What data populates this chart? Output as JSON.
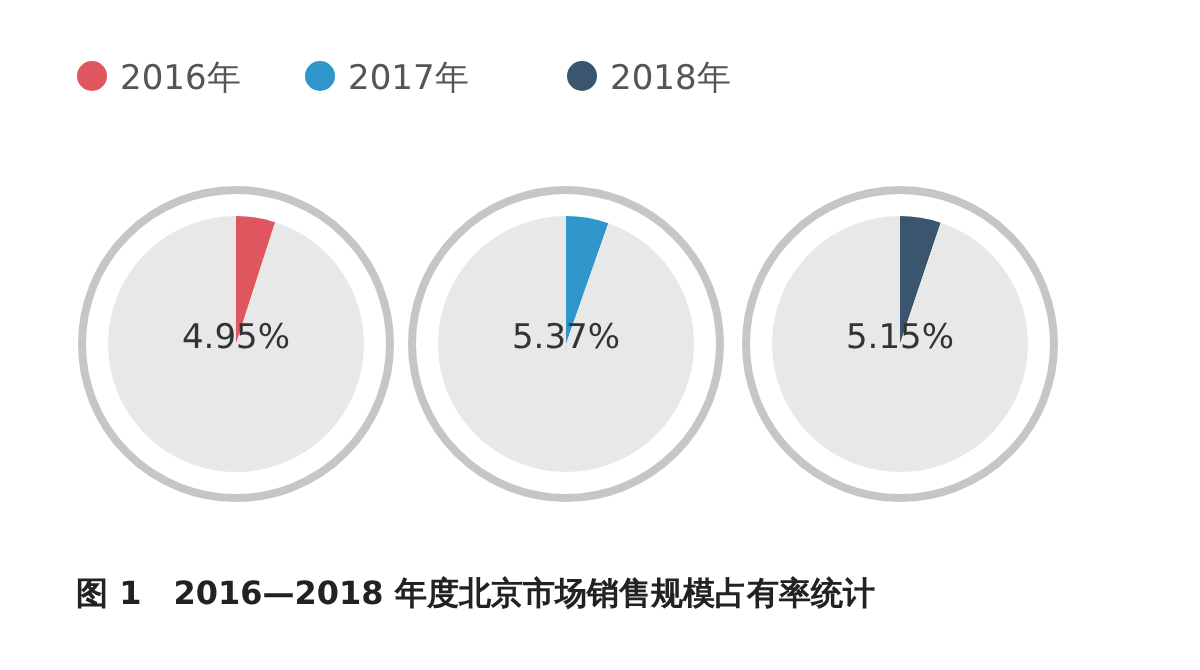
{
  "chart_data": [
    {
      "type": "pie",
      "categories": [
        "2016年",
        null
      ],
      "values": [
        4.95,
        95.05
      ],
      "colors": [
        "#e0565f",
        "#e8e8e8"
      ],
      "value_labels": [
        "4.95%",
        null
      ],
      "legend": "top",
      "annotations": [
        "图 1　2016—2018 年度北京市场销售规模占有率统计"
      ]
    },
    {
      "type": "pie",
      "categories": [
        "2017年",
        null
      ],
      "values": [
        5.37,
        94.63
      ],
      "colors": [
        "#2e96c9",
        "#e8e8e8"
      ],
      "value_labels": [
        "5.37%",
        null
      ],
      "legend": "top"
    },
    {
      "type": "pie",
      "categories": [
        "2018年",
        null
      ],
      "values": [
        5.15,
        94.85
      ],
      "colors": [
        "#3a566e",
        "#e8e8e8"
      ],
      "value_labels": [
        "5.15%",
        null
      ],
      "legend": "top"
    }
  ]
}
